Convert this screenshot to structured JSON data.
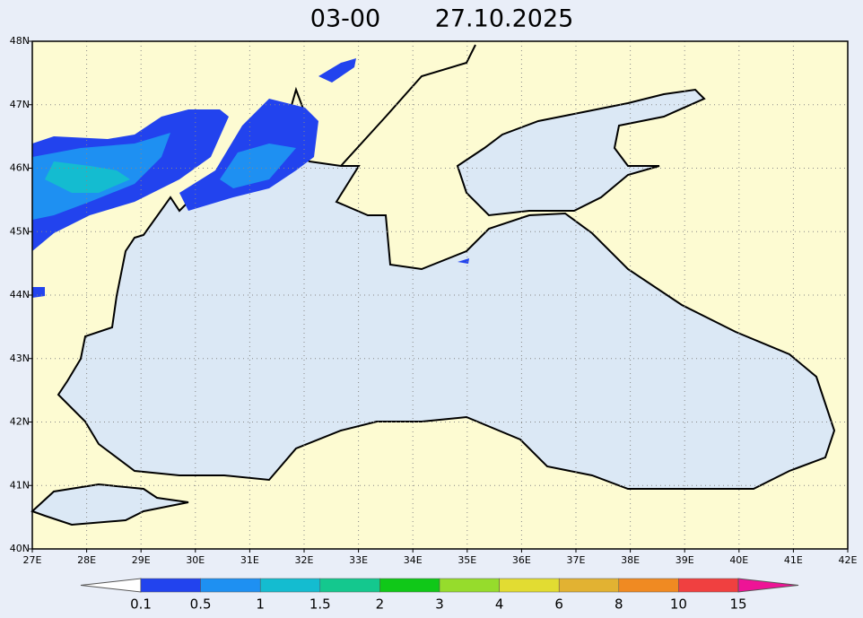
{
  "header": {
    "time": "03-00",
    "date": "27.10.2025"
  },
  "map": {
    "x_labels": [
      "27E",
      "28E",
      "29E",
      "30E",
      "31E",
      "32E",
      "33E",
      "34E",
      "35E",
      "36E",
      "37E",
      "38E",
      "39E",
      "40E",
      "41E",
      "42E"
    ],
    "y_labels": [
      "40N",
      "41N",
      "42N",
      "43N",
      "44N",
      "45N",
      "46N",
      "47N",
      "48N"
    ]
  },
  "colorbar": {
    "labels": [
      "0.1",
      "0.5",
      "1",
      "1.5",
      "2",
      "3",
      "4",
      "6",
      "8",
      "10",
      "15"
    ],
    "colors": [
      "#ffffff",
      "#2243ee",
      "#1e90f2",
      "#14bcd0",
      "#14c88e",
      "#10c818",
      "#96dc2c",
      "#e2dc32",
      "#e2b232",
      "#f08a22",
      "#f04040",
      "#ee1496"
    ]
  }
}
